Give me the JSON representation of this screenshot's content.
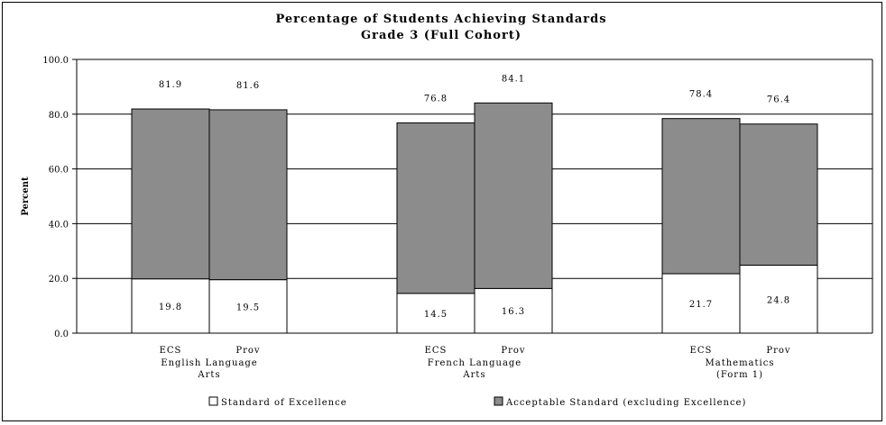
{
  "chart_data": {
    "type": "bar",
    "stacked": true,
    "title": "Percentage of Students Achieving Standards",
    "subtitle": "Grade 3 (Full Cohort)",
    "ylabel": "Percent",
    "ylim": [
      0,
      100
    ],
    "yticks": [
      "0.0",
      "20.0",
      "40.0",
      "60.0",
      "80.0",
      "100.0"
    ],
    "grid": true,
    "legend_position": "bottom",
    "groups": [
      {
        "label_lines": [
          "English Language",
          "Arts"
        ],
        "bars": [
          "ECS",
          "Prov"
        ]
      },
      {
        "label_lines": [
          "French Language",
          "Arts"
        ],
        "bars": [
          "ECS",
          "Prov"
        ]
      },
      {
        "label_lines": [
          "Mathematics",
          "(Form 1)"
        ],
        "bars": [
          "ECS",
          "Prov"
        ]
      }
    ],
    "series": [
      {
        "name": "Standard of Excellence",
        "color": "#ffffff",
        "values": [
          19.8,
          19.5,
          14.5,
          16.3,
          21.7,
          24.8
        ],
        "labels": [
          "19.8",
          "19.5",
          "14.5",
          "16.3",
          "21.7",
          "24.8"
        ]
      },
      {
        "name": "Acceptable Standard (excluding Excellence)",
        "color": "#8c8c8c",
        "totals": [
          81.9,
          81.6,
          76.8,
          84.1,
          78.4,
          76.4
        ],
        "total_labels": [
          "81.9",
          "81.6",
          "76.8",
          "84.1",
          "78.4",
          "76.4"
        ]
      }
    ]
  }
}
